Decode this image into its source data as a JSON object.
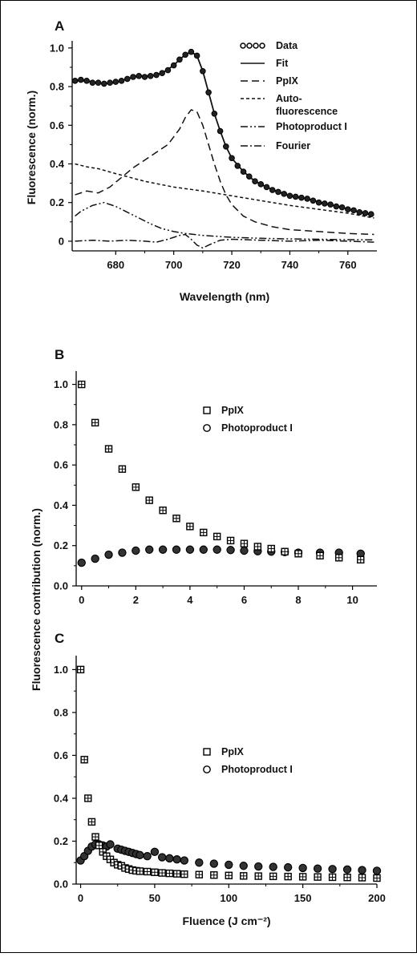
{
  "figure": {
    "shared_ylabel": "Fluorescence contribution (norm.)"
  },
  "chart_data": [
    {
      "panel": "A",
      "type": "line",
      "title": "",
      "xlabel": "Wavelength (nm)",
      "ylabel": "Fluorescence (norm.)",
      "xlim": [
        665,
        770
      ],
      "ylim": [
        -0.05,
        1.02
      ],
      "xticks": [
        680,
        700,
        720,
        740,
        760
      ],
      "yticks": [
        0,
        0.2,
        0.4,
        0.6,
        0.8,
        1.0
      ],
      "yticklabels": [
        "0",
        "0.2",
        "0.4",
        "0.6",
        "0.8",
        "1.0"
      ],
      "legend_position": "top-right",
      "series": [
        {
          "name": "Data",
          "style": "open-circles",
          "x": [
            666,
            668,
            670,
            672,
            674,
            676,
            678,
            680,
            682,
            684,
            686,
            688,
            690,
            692,
            694,
            696,
            698,
            700,
            702,
            704,
            706,
            708,
            710,
            712,
            714,
            716,
            718,
            720,
            722,
            724,
            726,
            728,
            730,
            732,
            734,
            736,
            738,
            740,
            742,
            744,
            746,
            748,
            750,
            752,
            754,
            756,
            758,
            760,
            762,
            764,
            766,
            768
          ],
          "y": [
            0.83,
            0.835,
            0.83,
            0.82,
            0.82,
            0.815,
            0.82,
            0.825,
            0.83,
            0.84,
            0.85,
            0.855,
            0.85,
            0.855,
            0.86,
            0.87,
            0.885,
            0.91,
            0.94,
            0.965,
            0.98,
            0.96,
            0.88,
            0.77,
            0.66,
            0.57,
            0.49,
            0.43,
            0.39,
            0.36,
            0.335,
            0.31,
            0.295,
            0.28,
            0.265,
            0.255,
            0.245,
            0.235,
            0.23,
            0.225,
            0.22,
            0.21,
            0.2,
            0.195,
            0.19,
            0.18,
            0.175,
            0.165,
            0.16,
            0.15,
            0.145,
            0.14
          ]
        },
        {
          "name": "Fit",
          "style": "solid",
          "x": [
            666,
            670,
            676,
            680,
            684,
            688,
            692,
            696,
            700,
            702,
            704,
            706,
            708,
            710,
            712,
            714,
            716,
            718,
            720,
            724,
            728,
            732,
            736,
            740,
            746,
            752,
            758,
            764,
            769
          ],
          "y": [
            0.83,
            0.83,
            0.815,
            0.82,
            0.84,
            0.855,
            0.855,
            0.87,
            0.91,
            0.94,
            0.965,
            0.98,
            0.96,
            0.88,
            0.77,
            0.66,
            0.57,
            0.49,
            0.43,
            0.36,
            0.31,
            0.28,
            0.255,
            0.235,
            0.22,
            0.195,
            0.175,
            0.15,
            0.135
          ]
        },
        {
          "name": "PpIX",
          "style": "dashed",
          "x": [
            666,
            670,
            674,
            678,
            682,
            686,
            690,
            694,
            698,
            702,
            704,
            706,
            708,
            710,
            712,
            714,
            716,
            718,
            720,
            724,
            728,
            734,
            740,
            750,
            760,
            769
          ],
          "y": [
            0.24,
            0.26,
            0.25,
            0.28,
            0.33,
            0.38,
            0.42,
            0.46,
            0.5,
            0.58,
            0.64,
            0.68,
            0.67,
            0.6,
            0.5,
            0.4,
            0.31,
            0.24,
            0.19,
            0.13,
            0.1,
            0.075,
            0.06,
            0.05,
            0.04,
            0.035
          ]
        },
        {
          "name": "Auto-\nfluorescence",
          "style": "short-dashed",
          "x": [
            666,
            670,
            674,
            680,
            690,
            700,
            710,
            720,
            730,
            740,
            750,
            760,
            769
          ],
          "y": [
            0.4,
            0.385,
            0.375,
            0.35,
            0.31,
            0.28,
            0.26,
            0.235,
            0.21,
            0.185,
            0.165,
            0.145,
            0.12
          ]
        },
        {
          "name": "Photoproduct I",
          "style": "dash-dot-dot",
          "x": [
            666,
            668,
            672,
            676,
            680,
            684,
            688,
            692,
            696,
            700,
            704,
            710,
            720,
            730,
            740,
            750,
            760,
            769
          ],
          "y": [
            0.13,
            0.155,
            0.185,
            0.2,
            0.18,
            0.15,
            0.12,
            0.09,
            0.065,
            0.05,
            0.04,
            0.03,
            0.02,
            0.015,
            0.012,
            0.01,
            0.008,
            0.007
          ]
        },
        {
          "name": "Fourier",
          "style": "dash-dot",
          "x": [
            666,
            672,
            678,
            684,
            690,
            694,
            698,
            702,
            704,
            706,
            708,
            710,
            712,
            716,
            720,
            730,
            740,
            750,
            760,
            769
          ],
          "y": [
            0,
            0.005,
            0,
            0.005,
            0,
            -0.005,
            0.01,
            0.03,
            0.035,
            0.01,
            -0.02,
            -0.035,
            -0.02,
            0.005,
            0.01,
            0.005,
            0,
            0.005,
            0,
            -0.005
          ]
        }
      ],
      "legend": [
        "Data",
        "Fit",
        "PpIX",
        "Auto-\nfluorescence",
        "Photoproduct I",
        "Fourier"
      ]
    },
    {
      "panel": "B",
      "type": "scatter",
      "title": "",
      "xlabel": "",
      "ylabel": "",
      "xlim": [
        -0.2,
        10.9
      ],
      "ylim": [
        0,
        1.05
      ],
      "xticks": [
        0,
        2,
        4,
        6,
        8,
        10
      ],
      "yticks": [
        0,
        0.2,
        0.4,
        0.6,
        0.8,
        1.0
      ],
      "yticklabels": [
        "0.0",
        "0.2",
        "0.4",
        "0.6",
        "0.8",
        "1.0"
      ],
      "legend_position": "center-right",
      "series": [
        {
          "name": "PpIX",
          "marker": "square",
          "x": [
            0,
            0.5,
            1,
            1.5,
            2,
            2.5,
            3,
            3.5,
            4,
            4.5,
            5,
            5.5,
            6,
            6.5,
            7,
            7.5,
            8,
            8.8,
            9.5,
            10.3
          ],
          "y": [
            1.0,
            0.81,
            0.68,
            0.58,
            0.49,
            0.425,
            0.375,
            0.335,
            0.295,
            0.265,
            0.245,
            0.225,
            0.21,
            0.195,
            0.185,
            0.17,
            0.16,
            0.15,
            0.14,
            0.13
          ]
        },
        {
          "name": "Photoproduct I",
          "marker": "circle",
          "x": [
            0,
            0.5,
            1,
            1.5,
            2,
            2.5,
            3,
            3.5,
            4,
            4.5,
            5,
            5.5,
            6,
            6.5,
            7,
            7.5,
            8,
            8.8,
            9.5,
            10.3
          ],
          "y": [
            0.115,
            0.135,
            0.155,
            0.165,
            0.175,
            0.18,
            0.18,
            0.18,
            0.18,
            0.18,
            0.18,
            0.178,
            0.175,
            0.172,
            0.17,
            0.168,
            0.165,
            0.165,
            0.165,
            0.16
          ]
        }
      ],
      "legend": [
        "PpIX",
        "Photoproduct I"
      ]
    },
    {
      "panel": "C",
      "type": "scatter",
      "title": "",
      "xlabel": "Fluence (J cm⁻²)",
      "ylabel": "",
      "xlim": [
        -3,
        200
      ],
      "ylim": [
        0,
        1.05
      ],
      "xticks": [
        0,
        50,
        100,
        150,
        200
      ],
      "yticks": [
        0,
        0.2,
        0.4,
        0.6,
        0.8,
        1.0
      ],
      "yticklabels": [
        "0.0",
        "0.2",
        "0.4",
        "0.6",
        "0.8",
        "1.0"
      ],
      "legend_position": "center-right",
      "series": [
        {
          "name": "PpIX",
          "marker": "square",
          "x": [
            0,
            2.5,
            5,
            7.5,
            10,
            12.5,
            15,
            17.5,
            20,
            22.5,
            25,
            27.5,
            30,
            32.5,
            35,
            37.5,
            40,
            45,
            50,
            55,
            60,
            65,
            70,
            80,
            90,
            100,
            110,
            120,
            130,
            140,
            150,
            160,
            170,
            180,
            190,
            200
          ],
          "y": [
            1.0,
            0.58,
            0.4,
            0.29,
            0.22,
            0.18,
            0.15,
            0.13,
            0.115,
            0.1,
            0.09,
            0.085,
            0.075,
            0.07,
            0.065,
            0.062,
            0.06,
            0.058,
            0.055,
            0.052,
            0.05,
            0.048,
            0.046,
            0.044,
            0.042,
            0.04,
            0.038,
            0.037,
            0.036,
            0.035,
            0.034,
            0.033,
            0.032,
            0.031,
            0.03,
            0.028
          ]
        },
        {
          "name": "Photoproduct I",
          "marker": "circle",
          "x": [
            0,
            2.5,
            5,
            7.5,
            10,
            12.5,
            15,
            17.5,
            20,
            25,
            27.5,
            30,
            32.5,
            35,
            37.5,
            40,
            45,
            50,
            55,
            60,
            65,
            70,
            80,
            90,
            100,
            110,
            120,
            130,
            140,
            150,
            160,
            170,
            180,
            190,
            200
          ],
          "y": [
            0.11,
            0.13,
            0.155,
            0.175,
            0.185,
            0.185,
            0.18,
            0.175,
            0.185,
            0.165,
            0.16,
            0.155,
            0.15,
            0.145,
            0.14,
            0.135,
            0.13,
            0.15,
            0.125,
            0.12,
            0.115,
            0.11,
            0.1,
            0.095,
            0.09,
            0.085,
            0.082,
            0.08,
            0.078,
            0.075,
            0.072,
            0.07,
            0.068,
            0.065,
            0.062
          ]
        }
      ],
      "legend": [
        "PpIX",
        "Photoproduct I"
      ]
    }
  ]
}
